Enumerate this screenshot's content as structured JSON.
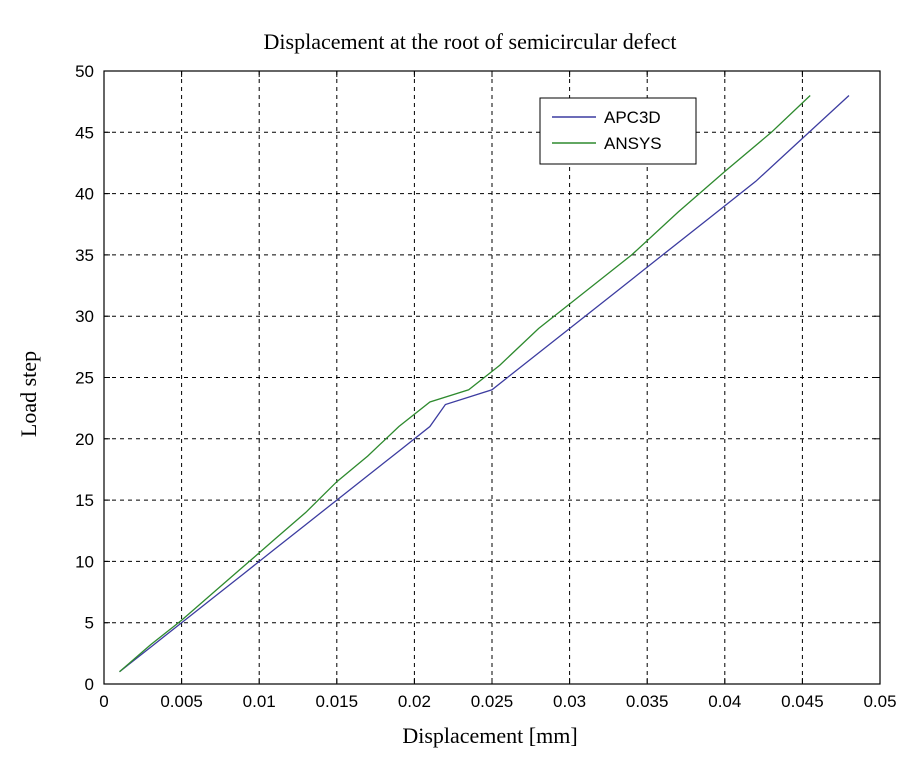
{
  "chart_data": {
    "type": "line",
    "title": "Displacement at the root of semicircular defect",
    "xlabel": "Displacement [mm]",
    "ylabel": "Load step",
    "xlim": [
      0,
      0.05
    ],
    "ylim": [
      0,
      50
    ],
    "xticks": [
      "0",
      "0.005",
      "0.01",
      "0.015",
      "0.02",
      "0.025",
      "0.03",
      "0.035",
      "0.04",
      "0.045",
      "0.05"
    ],
    "yticks": [
      "0",
      "5",
      "10",
      "15",
      "20",
      "25",
      "30",
      "35",
      "40",
      "45",
      "50"
    ],
    "grid": true,
    "legend_position": "top-right",
    "series": [
      {
        "name": "APC3D",
        "color": "#3c3ca0",
        "x": [
          0.001,
          0.003,
          0.005,
          0.007,
          0.009,
          0.011,
          0.013,
          0.015,
          0.017,
          0.019,
          0.021,
          0.022,
          0.025,
          0.027,
          0.03,
          0.033,
          0.036,
          0.039,
          0.042,
          0.045,
          0.048
        ],
        "y": [
          1,
          3,
          5,
          7,
          9,
          11,
          13,
          15,
          17,
          19,
          21,
          22.8,
          24,
          26,
          29,
          32,
          35,
          38,
          41,
          44.5,
          48
        ]
      },
      {
        "name": "ANSYS",
        "color": "#2e8a2e",
        "x": [
          0.001,
          0.003,
          0.005,
          0.007,
          0.009,
          0.011,
          0.013,
          0.015,
          0.017,
          0.019,
          0.021,
          0.0235,
          0.0255,
          0.028,
          0.031,
          0.034,
          0.037,
          0.04,
          0.043,
          0.0455
        ],
        "y": [
          1,
          3.2,
          5.2,
          7.4,
          9.6,
          11.8,
          14,
          16.5,
          18.6,
          21,
          23,
          24,
          26,
          29,
          32,
          35,
          38.5,
          41.8,
          45,
          48
        ]
      }
    ]
  }
}
